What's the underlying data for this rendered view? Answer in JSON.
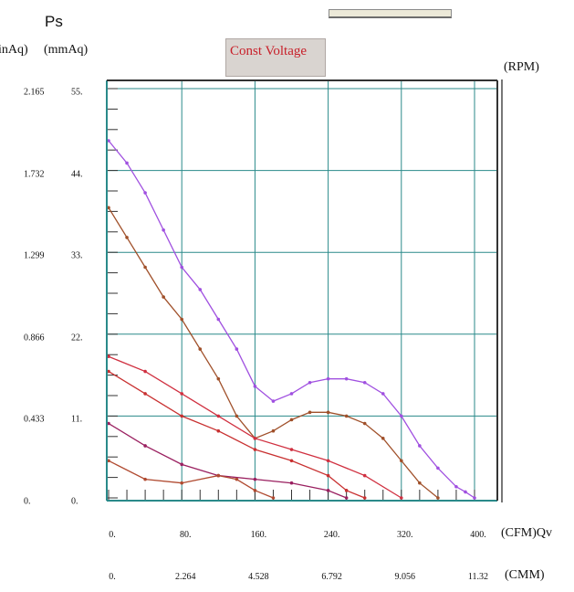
{
  "header": {
    "ps_label": "Ps",
    "inaq_unit": "inAq)",
    "mmaq_unit": "(mmAq)",
    "tab_label": "Const Voltage",
    "rpm_unit": "(RPM)",
    "cfm_unit": "(CFM)Qv",
    "cmm_unit": "(CMM)"
  },
  "chart_data": {
    "type": "line",
    "xlim": [
      0,
      400
    ],
    "ylim": [
      0,
      55
    ],
    "x_ticks": [
      "0.",
      "80.",
      "160.",
      "240.",
      "320.",
      "400."
    ],
    "x2_ticks": [
      "0.",
      "2.264",
      "4.528",
      "6.792",
      "9.056",
      "11.32"
    ],
    "y_ticks_mmaq": [
      "0.",
      "11.",
      "22.",
      "33.",
      "44.",
      "55."
    ],
    "y_ticks_inaq": [
      "0.",
      "0.433",
      "0.866",
      "1.299",
      "1.732",
      "2.165"
    ],
    "grid": true,
    "colors": [
      "#a050e0",
      "#a0502a",
      "#d03040",
      "#c83030",
      "#9a2060",
      "#b04a30"
    ],
    "series": [
      {
        "x": [
          0,
          20,
          40,
          60,
          80,
          100,
          120,
          140,
          160,
          180,
          200,
          220,
          240,
          260,
          280,
          300,
          320,
          340,
          360,
          380,
          390,
          400
        ],
        "y": [
          48,
          45,
          41,
          36,
          31,
          28,
          24,
          20,
          15,
          13,
          14,
          15.5,
          16,
          16,
          15.5,
          14,
          11,
          7,
          4,
          1.5,
          0.8,
          0
        ]
      },
      {
        "x": [
          0,
          20,
          40,
          60,
          80,
          100,
          120,
          140,
          160,
          180,
          200,
          220,
          240,
          260,
          280,
          300,
          320,
          340,
          360
        ],
        "y": [
          39,
          35,
          31,
          27,
          24,
          20,
          16,
          11,
          8,
          9,
          10.5,
          11.5,
          11.5,
          11,
          10,
          8,
          5,
          2,
          0
        ]
      },
      {
        "x": [
          0,
          40,
          80,
          120,
          160,
          200,
          240,
          280,
          320
        ],
        "y": [
          19,
          17,
          14,
          11,
          8,
          6.5,
          5,
          3,
          0
        ]
      },
      {
        "x": [
          0,
          40,
          80,
          120,
          160,
          200,
          240,
          260,
          280
        ],
        "y": [
          17,
          14,
          11,
          9,
          6.5,
          5,
          3,
          1,
          0
        ]
      },
      {
        "x": [
          0,
          40,
          80,
          120,
          160,
          200,
          240,
          260
        ],
        "y": [
          10,
          7,
          4.5,
          3,
          2.5,
          2,
          1,
          0
        ]
      },
      {
        "x": [
          0,
          40,
          80,
          120,
          140,
          160,
          180
        ],
        "y": [
          5,
          2.5,
          2,
          3,
          2.5,
          1,
          0
        ]
      }
    ]
  }
}
